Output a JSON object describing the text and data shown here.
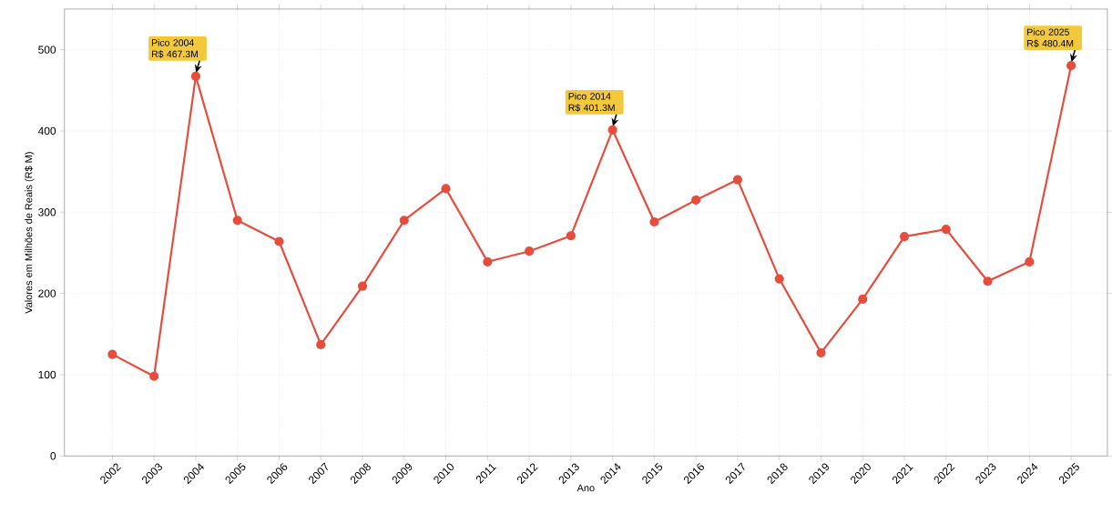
{
  "chart_data": {
    "type": "line",
    "xlabel": "Ano",
    "ylabel": "Valores em Milhões de Reais (R$ M)",
    "categories": [
      "2002",
      "2003",
      "2004",
      "2005",
      "2006",
      "2007",
      "2008",
      "2009",
      "2010",
      "2011",
      "2012",
      "2013",
      "2014",
      "2015",
      "2016",
      "2017",
      "2018",
      "2019",
      "2020",
      "2021",
      "2022",
      "2023",
      "2024",
      "2025"
    ],
    "values": [
      125,
      98,
      467.3,
      290,
      264,
      137,
      209,
      290,
      329,
      239,
      252,
      271,
      401.3,
      288,
      315,
      340,
      218,
      127,
      193,
      270,
      279,
      215,
      239,
      480.4
    ],
    "color": "#e74c3c",
    "marker": "circle",
    "line_style": "solid",
    "grid": true,
    "ylim": [
      0,
      550
    ],
    "yticks": [
      0,
      100,
      200,
      300,
      400,
      500
    ],
    "annotations": [
      {
        "text": "Pico 2004 R$ 467.3M",
        "x": "2004",
        "y": 467.3
      },
      {
        "text": "Pico 2014 R$ 401.3M",
        "x": "2014",
        "y": 401.3
      },
      {
        "text": "Pico 2025 R$ 480.4M",
        "x": "2025",
        "y": 480.4
      }
    ]
  }
}
